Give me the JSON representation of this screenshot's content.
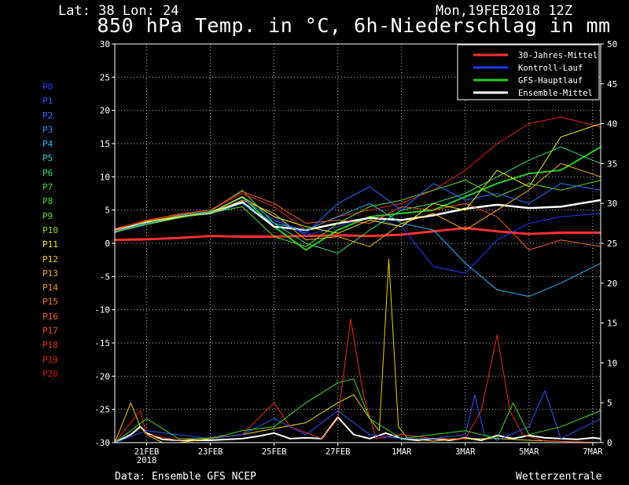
{
  "header": {
    "latlon": "Lat: 38 Lon: 24",
    "date": "Mon,19FEB2018 12Z",
    "title": "850 hPa Temp. in °C, 6h-Niederschlag in mm"
  },
  "footer": {
    "left": "Data: Ensemble GFS NCEP",
    "right": "Wetterzentrale"
  },
  "members": [
    {
      "label": "P0",
      "color": "#1f3bff"
    },
    {
      "label": "P1",
      "color": "#2a55ff"
    },
    {
      "label": "P2",
      "color": "#2f6eff"
    },
    {
      "label": "P3",
      "color": "#2f8dff"
    },
    {
      "label": "P4",
      "color": "#28b4ff"
    },
    {
      "label": "P5",
      "color": "#30d0d0"
    },
    {
      "label": "P6",
      "color": "#30e070"
    },
    {
      "label": "P7",
      "color": "#30e040"
    },
    {
      "label": "P8",
      "color": "#40e020"
    },
    {
      "label": "P9",
      "color": "#60e020"
    },
    {
      "label": "P10",
      "color": "#90e010"
    },
    {
      "label": "P11",
      "color": "#e8f010"
    },
    {
      "label": "P12",
      "color": "#f0d010"
    },
    {
      "label": "P13",
      "color": "#f0b010"
    },
    {
      "label": "P14",
      "color": "#f09a10"
    },
    {
      "label": "P15",
      "color": "#f07f10"
    },
    {
      "label": "P16",
      "color": "#f06010"
    },
    {
      "label": "P17",
      "color": "#e84810"
    },
    {
      "label": "P18",
      "color": "#e83010"
    },
    {
      "label": "P19",
      "color": "#e02010"
    },
    {
      "label": "P20",
      "color": "#d01010"
    }
  ],
  "chart_data": {
    "type": "line",
    "title": "850 hPa Temp. in °C, 6h-Niederschlag in mm",
    "x_ticks": [
      "21FEB\n2018",
      "23FEB",
      "25FEB",
      "27FEB",
      "1MAR",
      "3MAR",
      "5MAR",
      "7MAR"
    ],
    "x_tick_days": [
      1,
      3,
      5,
      7,
      9,
      11,
      13,
      15
    ],
    "x_range": [
      0,
      15.25
    ],
    "y_left": {
      "range": [
        -30,
        30
      ],
      "ticks": [
        30,
        25,
        20,
        15,
        10,
        5,
        0,
        -5,
        -10,
        -15,
        -20,
        -25,
        -30
      ]
    },
    "y_right": {
      "range": [
        0,
        50
      ],
      "ticks": [
        50,
        45,
        40,
        35,
        30,
        25,
        20,
        15,
        10,
        5,
        0
      ]
    },
    "grid": true,
    "legend_placement": "top-right",
    "legend": [
      {
        "name": "30-Jahres-Mittel",
        "color": "#ff3030"
      },
      {
        "name": "Kontroll-Lauf",
        "color": "#1f3bff"
      },
      {
        "name": "GFS-Hauptlauf",
        "color": "#22cc22"
      },
      {
        "name": "Ensemble-Mittel",
        "color": "#ffffff"
      }
    ],
    "series": [
      {
        "name": "30-Jahres-Mittel",
        "axis": "left",
        "color": "#ff3030",
        "width": 3,
        "x": [
          0,
          1,
          2,
          3,
          4,
          5,
          6,
          7,
          8,
          9,
          10,
          11,
          12,
          13,
          14,
          15.25
        ],
        "y": [
          0.5,
          0.6,
          0.8,
          1.1,
          1.0,
          1.0,
          1.1,
          1.2,
          1.1,
          1.3,
          1.8,
          2.3,
          1.8,
          1.4,
          1.6,
          1.6
        ]
      },
      {
        "name": "Kontroll-Lauf",
        "axis": "left",
        "color": "#1f3bff",
        "width": 1,
        "x": [
          0,
          1,
          2,
          3,
          4,
          5,
          6,
          7,
          8,
          9,
          10,
          11,
          12,
          13,
          14,
          15.25
        ],
        "y": [
          1.8,
          3.2,
          4.0,
          4.6,
          7.0,
          4.0,
          1.2,
          2.5,
          4.0,
          2.5,
          -3.5,
          -4.5,
          0.5,
          3.0,
          4.0,
          4.5
        ]
      },
      {
        "name": "GFS-Hauptlauf",
        "axis": "left",
        "color": "#22cc22",
        "width": 2,
        "x": [
          0,
          1,
          2,
          3,
          4,
          5,
          6,
          7,
          8,
          9,
          10,
          11,
          12,
          13,
          14,
          15.25
        ],
        "y": [
          1.8,
          3.0,
          4.0,
          4.5,
          7.0,
          2.5,
          -1.0,
          2.0,
          4.0,
          4.5,
          5.0,
          7.0,
          9.0,
          10.5,
          11.0,
          14.5
        ]
      },
      {
        "name": "Ensemble-Mittel",
        "axis": "left",
        "color": "#ffffff",
        "width": 2.5,
        "x": [
          0,
          1,
          2,
          3,
          4,
          5,
          6,
          7,
          8,
          9,
          10,
          11,
          12,
          13,
          14,
          15.25
        ],
        "y": [
          1.8,
          3.1,
          4.0,
          4.6,
          6.2,
          2.5,
          2.0,
          3.0,
          3.8,
          3.5,
          4.2,
          5.2,
          5.8,
          5.3,
          5.5,
          6.5
        ]
      },
      {
        "name": "P6",
        "axis": "left",
        "color": "#30e070",
        "width": 1,
        "x": [
          0,
          1,
          2,
          3,
          4,
          5,
          6,
          7,
          8,
          9,
          10,
          11,
          12,
          13,
          14,
          15.25
        ],
        "y": [
          1.8,
          3.0,
          4.2,
          4.8,
          8.0,
          3.0,
          0.0,
          -1.5,
          2.0,
          5.0,
          6.0,
          7.5,
          10.0,
          12.5,
          14.5,
          12.0
        ]
      },
      {
        "name": "P19",
        "axis": "left",
        "color": "#e02010",
        "width": 1,
        "x": [
          0,
          1,
          2,
          3,
          4,
          5,
          6,
          7,
          8,
          9,
          10,
          11,
          12,
          13,
          14,
          15.25
        ],
        "y": [
          2.2,
          3.5,
          4.3,
          5.0,
          7.5,
          5.5,
          2.0,
          4.0,
          5.0,
          6.0,
          8.0,
          11.0,
          15.0,
          18.0,
          19.0,
          17.5
        ]
      },
      {
        "name": "P4",
        "axis": "left",
        "color": "#28b4ff",
        "width": 1,
        "x": [
          0,
          1,
          2,
          3,
          4,
          5,
          6,
          7,
          8,
          9,
          10,
          11,
          12,
          13,
          14,
          15.25
        ],
        "y": [
          1.6,
          3.2,
          4.0,
          4.4,
          6.0,
          3.0,
          2.0,
          4.0,
          6.0,
          3.0,
          2.0,
          -3.0,
          -7.0,
          -8.0,
          -6.0,
          -3.0
        ]
      },
      {
        "name": "P13",
        "axis": "left",
        "color": "#f0b010",
        "width": 1,
        "x": [
          0,
          1,
          2,
          3,
          4,
          5,
          6,
          7,
          8,
          9,
          10,
          11,
          12,
          13,
          14,
          15.25
        ],
        "y": [
          2.0,
          3.3,
          4.1,
          4.5,
          6.5,
          4.5,
          0.5,
          1.0,
          -0.5,
          3.0,
          4.5,
          2.0,
          5.0,
          8.0,
          12.0,
          10.0
        ]
      },
      {
        "name": "P16",
        "axis": "left",
        "color": "#f06010",
        "width": 1,
        "x": [
          0,
          1,
          2,
          3,
          4,
          5,
          6,
          7,
          8,
          9,
          10,
          11,
          12,
          13,
          14,
          15.25
        ],
        "y": [
          1.9,
          3.4,
          4.4,
          5.0,
          7.8,
          6.0,
          3.0,
          3.5,
          3.0,
          5.5,
          5.0,
          6.0,
          4.0,
          -1.0,
          0.5,
          -0.5
        ]
      },
      {
        "name": "P9",
        "axis": "left",
        "color": "#60e020",
        "width": 1,
        "x": [
          0,
          1,
          2,
          3,
          4,
          5,
          6,
          7,
          8,
          9,
          10,
          11,
          12,
          13,
          14,
          15.25
        ],
        "y": [
          1.7,
          2.8,
          3.8,
          4.6,
          5.5,
          1.0,
          -0.5,
          3.0,
          5.5,
          6.5,
          8.0,
          9.5,
          7.0,
          9.0,
          8.0,
          9.5
        ]
      },
      {
        "name": "P2",
        "axis": "left",
        "color": "#2f6eff",
        "width": 1,
        "x": [
          0,
          1,
          2,
          3,
          4,
          5,
          6,
          7,
          8,
          9,
          10,
          11,
          12,
          13,
          14,
          15.25
        ],
        "y": [
          1.8,
          3.0,
          4.1,
          4.7,
          6.8,
          3.5,
          1.5,
          6.0,
          8.5,
          5.0,
          9.0,
          6.5,
          7.5,
          6.0,
          9.0,
          8.0
        ]
      },
      {
        "name": "P11",
        "axis": "left",
        "color": "#e8f010",
        "width": 1,
        "x": [
          0,
          1,
          2,
          3,
          4,
          5,
          6,
          7,
          8,
          9,
          10,
          11,
          12,
          13,
          14,
          15.25
        ],
        "y": [
          2.1,
          3.2,
          4.0,
          4.6,
          7.0,
          4.0,
          2.5,
          1.5,
          3.5,
          2.5,
          6.0,
          5.0,
          11.0,
          8.5,
          16.0,
          18.0
        ]
      },
      {
        "name": "Niederschlag Ensemble-Mittel",
        "axis": "right",
        "color": "#ffffff",
        "width": 2,
        "x": [
          0,
          0.5,
          0.8,
          1.0,
          1.5,
          2,
          3,
          4,
          4.5,
          5,
          5.5,
          6,
          6.5,
          7,
          7.5,
          8,
          8.5,
          9,
          9.5,
          10,
          10.5,
          11,
          11.5,
          12,
          12.5,
          13,
          13.5,
          14,
          14.5,
          15,
          15.25
        ],
        "y": [
          0,
          1.0,
          2.0,
          1.2,
          0.4,
          0.3,
          0.3,
          0.5,
          0.8,
          1.2,
          0.5,
          0.6,
          0.5,
          3.2,
          1.0,
          0.5,
          1.2,
          0.5,
          0.3,
          0.5,
          0.3,
          0.6,
          0.3,
          0.9,
          0.5,
          0.9,
          0.6,
          0.5,
          0.4,
          0.6,
          0.5
        ]
      },
      {
        "name": "Niederschlag P12",
        "axis": "right",
        "color": "#f0d010",
        "width": 1,
        "x": [
          0,
          0.5,
          0.8,
          1.0,
          1.5,
          2,
          4,
          6,
          7,
          7.5,
          8,
          8.3,
          8.6,
          8.9,
          9.2,
          10,
          11,
          12,
          13,
          15.25
        ],
        "y": [
          0,
          5.0,
          2.0,
          1.0,
          0,
          0,
          1.0,
          2.5,
          5.0,
          6.0,
          3.0,
          1.5,
          23.0,
          2.0,
          0.5,
          0.2,
          0.5,
          0.5,
          0.3,
          0
        ]
      },
      {
        "name": "Niederschlag P18",
        "axis": "right",
        "color": "#e83010",
        "width": 1,
        "x": [
          0,
          0.5,
          0.8,
          1.0,
          2,
          4,
          5,
          5.5,
          6.5,
          7,
          7.4,
          7.8,
          8.2,
          9,
          10,
          11,
          11.5,
          12,
          12.4,
          12.8,
          13.5,
          15.25
        ],
        "y": [
          0,
          2.5,
          4.0,
          1.0,
          0.3,
          1.0,
          5.0,
          2.0,
          0.5,
          3.0,
          15.5,
          6.0,
          0.5,
          1.0,
          0.5,
          0.5,
          4.0,
          13.5,
          4.0,
          1.0,
          0.2,
          0
        ]
      },
      {
        "name": "Niederschlag P1",
        "axis": "right",
        "color": "#2a55ff",
        "width": 1,
        "x": [
          0,
          1,
          3,
          4,
          5,
          6,
          7,
          8,
          9,
          10,
          11,
          11.3,
          11.6,
          12,
          13,
          13.5,
          14,
          15.25
        ],
        "y": [
          0,
          1.5,
          0.5,
          1.0,
          3.0,
          1.0,
          4.0,
          1.0,
          0.5,
          0.5,
          1.0,
          6.0,
          1.0,
          0.3,
          2.0,
          6.5,
          0.5,
          3.0
        ]
      },
      {
        "name": "Niederschlag P8",
        "axis": "right",
        "color": "#40e020",
        "width": 1,
        "x": [
          0,
          1,
          2,
          3,
          4,
          5,
          6,
          7,
          7.5,
          8,
          9,
          10,
          11,
          12,
          12.5,
          13,
          14,
          15.25
        ],
        "y": [
          0,
          3.0,
          0.5,
          0.5,
          1.5,
          2.0,
          5.0,
          7.5,
          8.0,
          3.0,
          0.5,
          1.0,
          1.5,
          0.5,
          5.0,
          1.0,
          2.0,
          4.0
        ]
      }
    ]
  }
}
